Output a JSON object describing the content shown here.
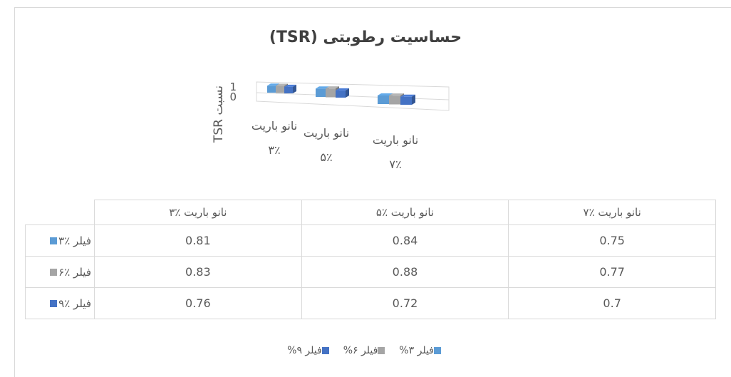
{
  "chart_data": {
    "type": "bar3d",
    "title": "حساسیت رطوبتی (TSR)",
    "y_label": "نسبت TSR",
    "categories": [
      "نانو باریت ٪۳",
      "نانو باریت ٪۵",
      "نانو باریت ٪۷"
    ],
    "ylim": [
      0,
      1
    ],
    "yticks": [
      0,
      1
    ],
    "series": [
      {
        "name": "فیلر ٪۳",
        "color": "#5b9bd5",
        "values": [
          0.81,
          0.84,
          0.75
        ]
      },
      {
        "name": "فیلر ٪۶",
        "color": "#a5a5a5",
        "values": [
          0.83,
          0.88,
          0.77
        ]
      },
      {
        "name": "فیلر ٪۹",
        "color": "#4472c4",
        "values": [
          0.76,
          0.72,
          0.7
        ]
      }
    ],
    "legend_labels": [
      "فیلر ۳%",
      "فیلر ۶%",
      "فیلر ۹%"
    ]
  }
}
